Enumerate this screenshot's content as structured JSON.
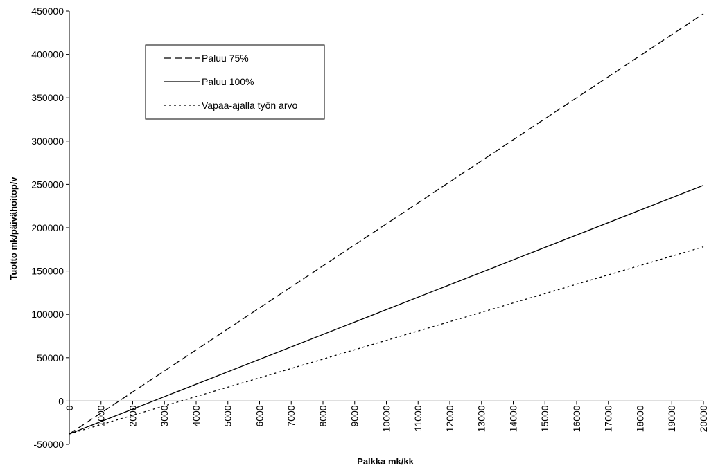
{
  "chart_data": {
    "type": "line",
    "title": "",
    "xlabel": "Palkka mk/kk",
    "ylabel": "Tuotto mk/päivähoitop/v",
    "xlim": [
      0,
      20000
    ],
    "ylim": [
      -50000,
      450000
    ],
    "xticks": [
      0,
      1000,
      2000,
      3000,
      4000,
      5000,
      6000,
      7000,
      8000,
      9000,
      10000,
      11000,
      12000,
      13000,
      14000,
      15000,
      16000,
      17000,
      18000,
      19000,
      20000
    ],
    "yticks": [
      -50000,
      0,
      50000,
      100000,
      150000,
      200000,
      250000,
      300000,
      350000,
      400000,
      450000
    ],
    "x": [
      0,
      20000
    ],
    "grid": false,
    "legend_position": "top-left",
    "series": [
      {
        "name": "Paluu 75%",
        "values": [
          -38000,
          447000
        ],
        "color": "#000000",
        "dash": "dashed"
      },
      {
        "name": "Paluu 100%",
        "values": [
          -38000,
          249000
        ],
        "color": "#000000",
        "dash": "solid"
      },
      {
        "name": "Vapaa-ajalla työn arvo",
        "values": [
          -38000,
          178000
        ],
        "color": "#000000",
        "dash": "dotted"
      }
    ]
  }
}
